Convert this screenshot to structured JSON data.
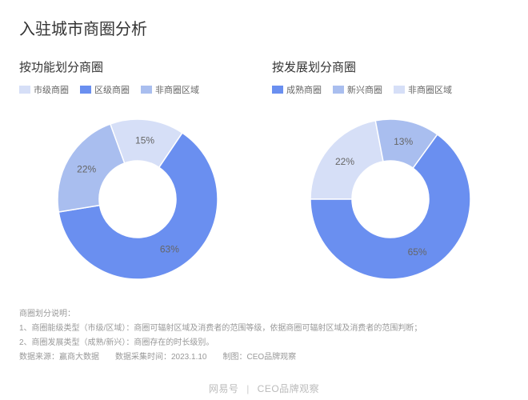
{
  "title": "入驻城市商圈分析",
  "colors": {
    "c1": "#6a8ff0",
    "c2": "#a9beef",
    "c3": "#d6dff7",
    "text": "#666666",
    "background": "#ffffff"
  },
  "leftChart": {
    "type": "donut",
    "title": "按功能划分商圈",
    "inner_ratio": 0.48,
    "outer_radius": 100,
    "legend": [
      {
        "label": "市级商圈",
        "swatch": "#d6dff7"
      },
      {
        "label": "区级商圈",
        "swatch": "#6a8ff0"
      },
      {
        "label": "非商圈区域",
        "swatch": "#a9beef"
      }
    ],
    "slices": [
      {
        "name": "市级商圈",
        "value": 15,
        "label": "15%",
        "color": "#d6dff7"
      },
      {
        "name": "区级商圈",
        "value": 63,
        "label": "63%",
        "color": "#6a8ff0"
      },
      {
        "name": "非商圈区域",
        "value": 22,
        "label": "22%",
        "color": "#a9beef"
      }
    ]
  },
  "rightChart": {
    "type": "donut",
    "title": "按发展划分商圈",
    "inner_ratio": 0.48,
    "outer_radius": 100,
    "legend": [
      {
        "label": "成熟商圈",
        "swatch": "#6a8ff0"
      },
      {
        "label": "新兴商圈",
        "swatch": "#a9beef"
      },
      {
        "label": "非商圈区域",
        "swatch": "#d6dff7"
      }
    ],
    "slices": [
      {
        "name": "非商圈区域",
        "value": 22,
        "label": "22%",
        "color": "#d6dff7"
      },
      {
        "name": "新兴商圈",
        "value": 13,
        "label": "13%",
        "color": "#a9beef"
      },
      {
        "name": "成熟商圈",
        "value": 65,
        "label": "65%",
        "color": "#6a8ff0"
      }
    ]
  },
  "footnotes": {
    "heading": "商圈划分说明：",
    "line1": "1、商圈能级类型（市级/区域）：商圈可辐射区域及消费者的范围等级，依据商圈可辐射区域及消费者的范围判断；",
    "line2": "2、商圈发展类型（成熟/新兴）：商圈存在的时长级别。",
    "line3": "数据来源：赢商大数据　　数据采集时间：2023.1.10　　制图：CEO品牌观察"
  },
  "watermark": {
    "left": "网易号",
    "right": "CEO品牌观察"
  }
}
